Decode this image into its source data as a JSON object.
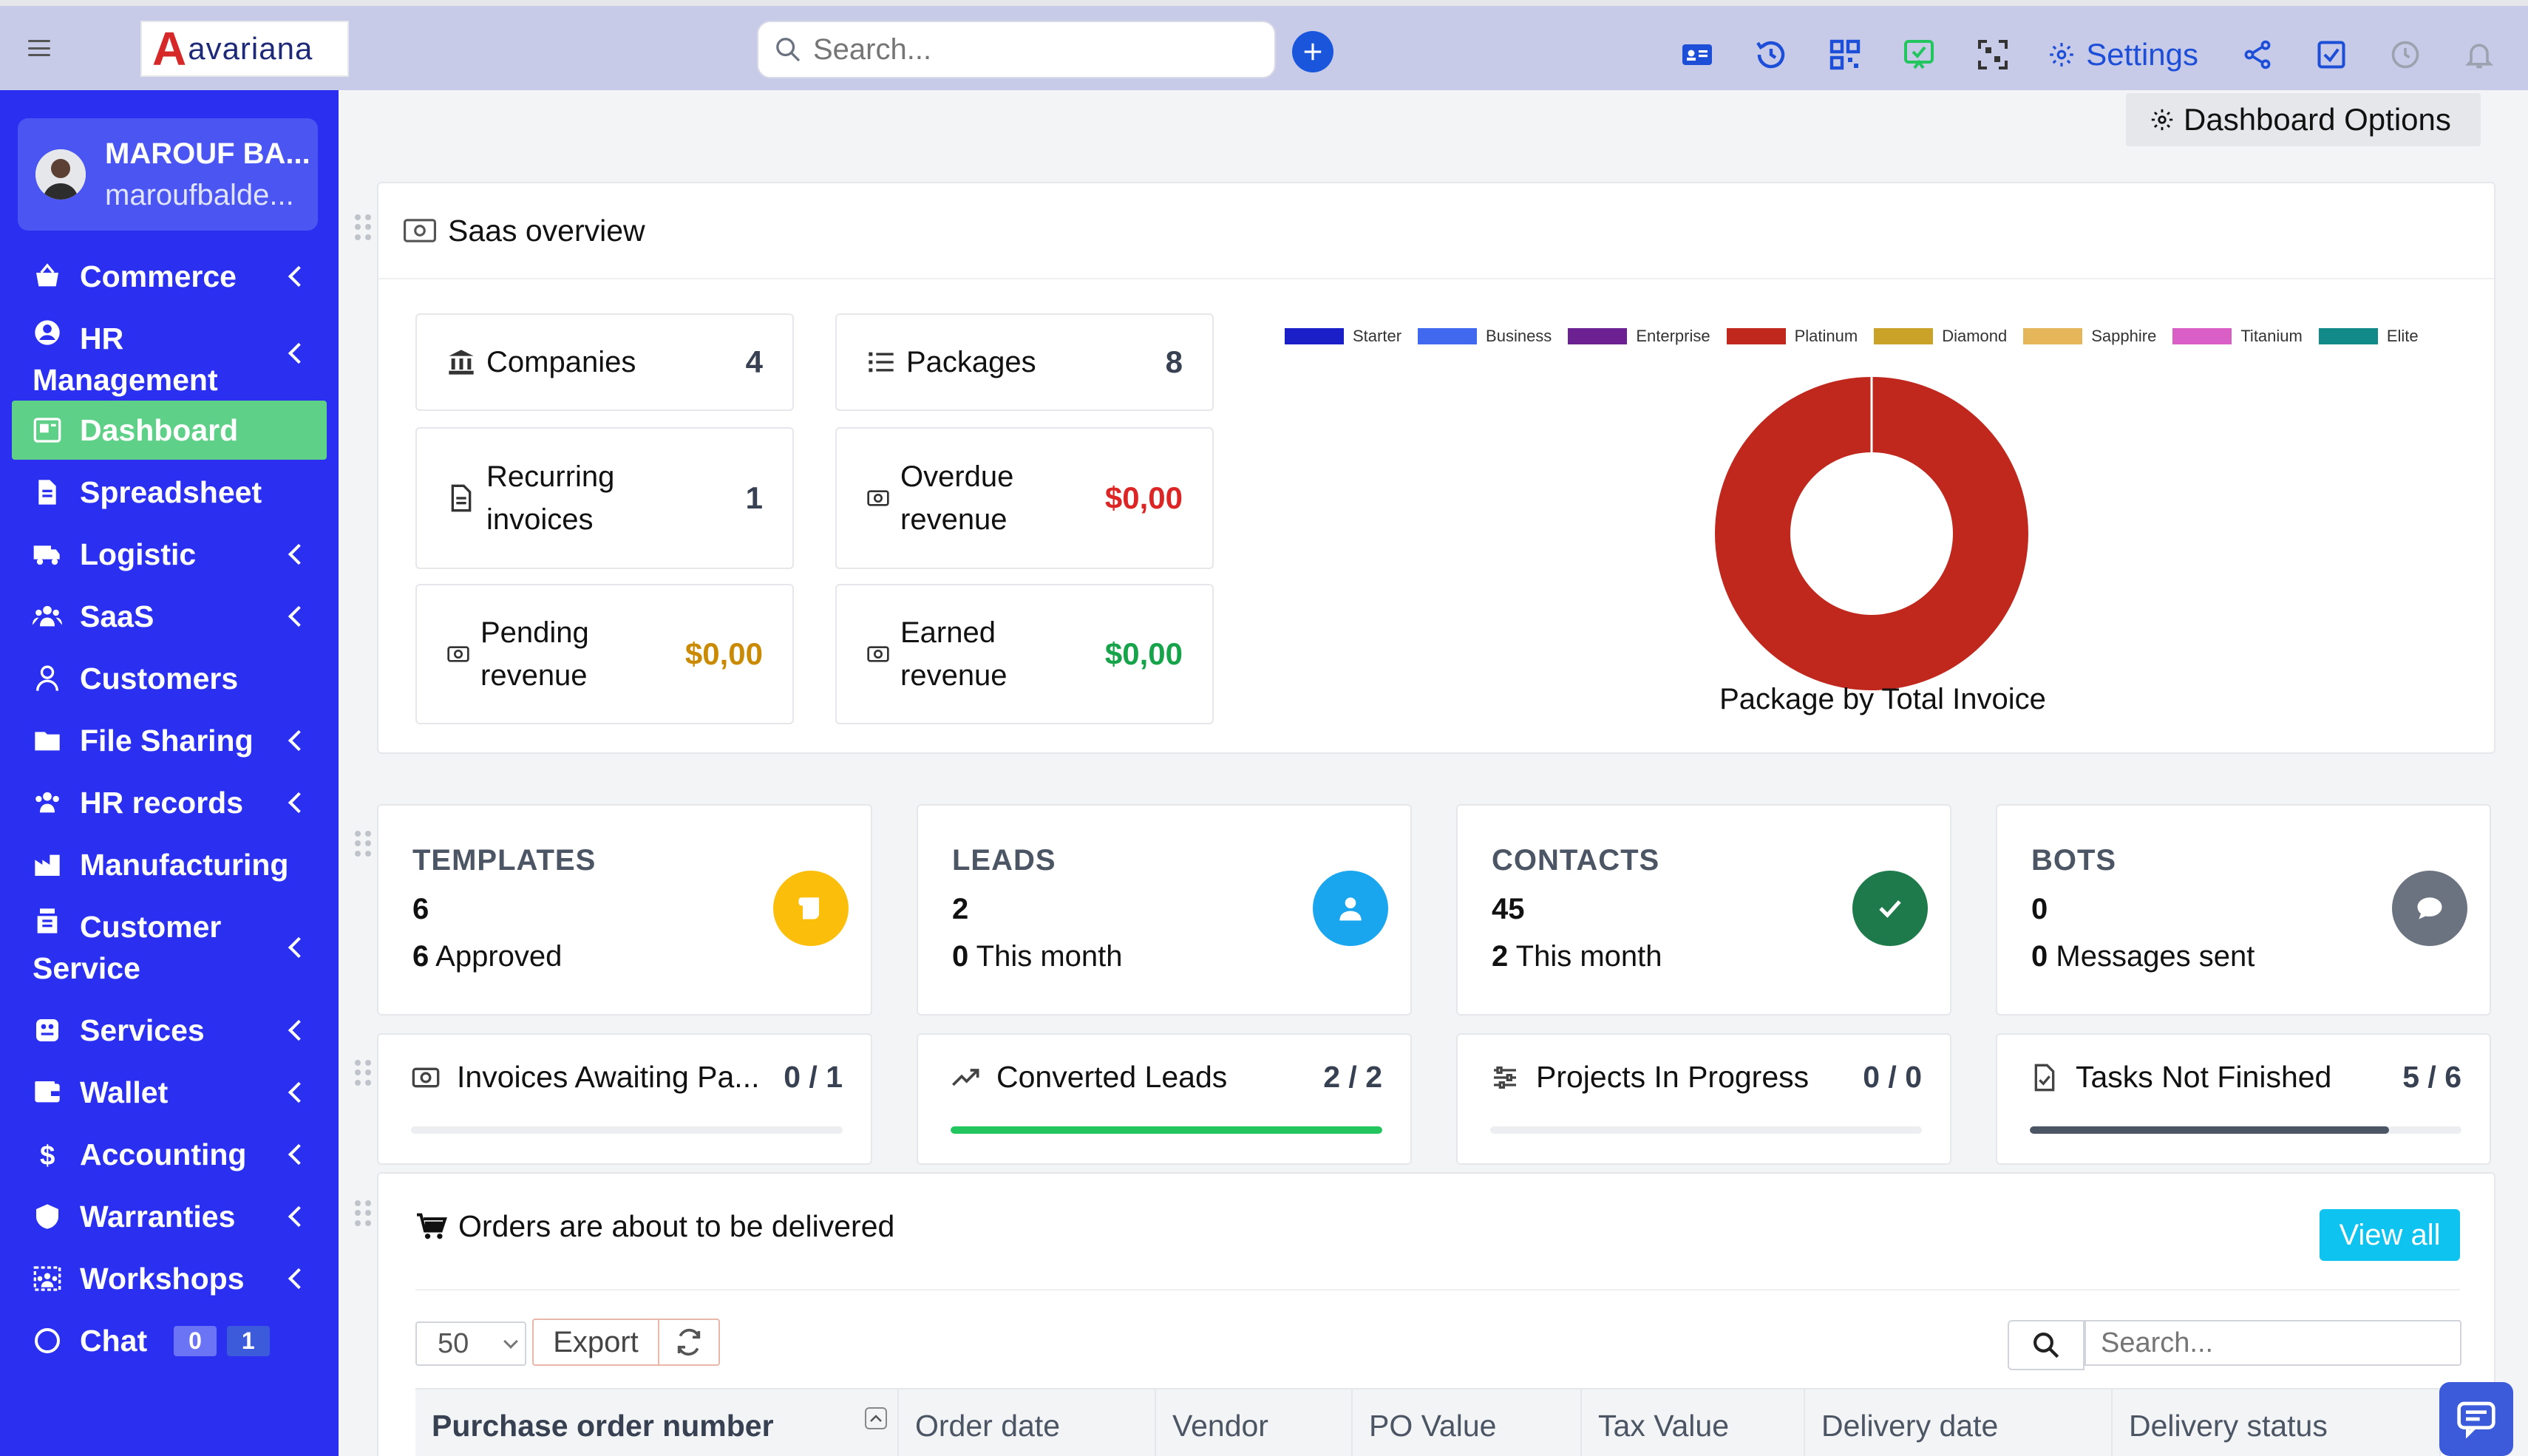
{
  "brand": {
    "logo_letter": "A",
    "logo_text": "avariana"
  },
  "topbar": {
    "search_placeholder": "Search...",
    "settings_label": "Settings",
    "icons": [
      "contact-card-icon",
      "history-icon",
      "qr-code-icon",
      "feedback-icon",
      "scan-qr-icon",
      "gear-icon",
      "share-icon",
      "checkbox-icon",
      "clock-icon",
      "bell-icon"
    ]
  },
  "user": {
    "name": "MAROUF BA...",
    "email": "maroufbalde..."
  },
  "sidebar": {
    "items": [
      {
        "label": "Commerce",
        "icon": "basket-icon",
        "has_children": true
      },
      {
        "label": "HR\nManagement",
        "icon": "user-circle-icon",
        "has_children": true
      },
      {
        "label": "Dashboard",
        "icon": "dashboard-icon",
        "has_children": false,
        "active": true
      },
      {
        "label": "Spreadsheet",
        "icon": "document-icon",
        "has_children": false
      },
      {
        "label": "Logistic",
        "icon": "truck-icon",
        "has_children": true
      },
      {
        "label": "SaaS",
        "icon": "users-icon",
        "has_children": true
      },
      {
        "label": "Customers",
        "icon": "person-icon",
        "has_children": false
      },
      {
        "label": "File Sharing",
        "icon": "folder-icon",
        "has_children": true
      },
      {
        "label": "HR records",
        "icon": "team-icon",
        "has_children": true
      },
      {
        "label": "Manufacturing",
        "icon": "factory-icon",
        "has_children": false
      },
      {
        "label": "Customer\nService",
        "icon": "support-icon",
        "has_children": true
      },
      {
        "label": "Services",
        "icon": "services-icon",
        "has_children": true
      },
      {
        "label": "Wallet",
        "icon": "wallet-icon",
        "has_children": true
      },
      {
        "label": "Accounting",
        "icon": "dollar-icon",
        "has_children": true
      },
      {
        "label": "Warranties",
        "icon": "shield-icon",
        "has_children": true
      },
      {
        "label": "Workshops",
        "icon": "workshop-icon",
        "has_children": true
      },
      {
        "label": "Chat",
        "icon": "chat-icon",
        "has_children": false,
        "badges": [
          "0",
          "1"
        ]
      }
    ]
  },
  "dashboard_options_label": "Dashboard Options",
  "saas": {
    "title": "Saas overview",
    "cards": [
      {
        "label": "Companies",
        "value": "4",
        "icon": "bank-icon",
        "color": "#374151"
      },
      {
        "label": "Packages",
        "value": "8",
        "icon": "list-icon",
        "color": "#374151"
      },
      {
        "label": "Recurring\ninvoices",
        "value": "1",
        "icon": "file-icon",
        "color": "#374151"
      },
      {
        "label": "Overdue\nrevenue",
        "value": "$0,00",
        "icon": "money-icon",
        "color": "#dc2626"
      },
      {
        "label": "Pending\nrevenue",
        "value": "$0,00",
        "icon": "money-icon",
        "color": "#ca8a04"
      },
      {
        "label": "Earned\nrevenue",
        "value": "$0,00",
        "icon": "money-icon",
        "color": "#16a34a"
      }
    ]
  },
  "chart_data": {
    "type": "pie",
    "title": "Package by Total Invoice",
    "categories": [
      "Starter",
      "Business",
      "Enterprise",
      "Platinum",
      "Diamond",
      "Sapphire",
      "Titanium",
      "Elite"
    ],
    "colors": [
      "#1a1fc7",
      "#4169f0",
      "#6b2191",
      "#c0281e",
      "#c9a227",
      "#e6b65a",
      "#d95fc7",
      "#128a8a"
    ],
    "values": [
      0,
      0,
      0,
      1,
      0,
      0,
      0,
      0
    ],
    "legend_position": "top",
    "donut": true
  },
  "kpis": [
    {
      "title": "TEMPLATES",
      "number": "6",
      "sub_num": "6",
      "sub_text": "Approved",
      "icon": "scroll-icon",
      "color": "#fbbf0b"
    },
    {
      "title": "LEADS",
      "number": "2",
      "sub_num": "0",
      "sub_text": "This month",
      "icon": "user-icon",
      "color": "#1aa6ee"
    },
    {
      "title": "CONTACTS",
      "number": "45",
      "sub_num": "2",
      "sub_text": "This month",
      "icon": "check-icon",
      "color": "#1e7a4a"
    },
    {
      "title": "BOTS",
      "number": "0",
      "sub_num": "0",
      "sub_text": "Messages sent",
      "icon": "message-icon",
      "color": "#6b7280"
    }
  ],
  "progress": [
    {
      "label": "Invoices Awaiting Pa...",
      "count": "0 / 1",
      "icon": "money-icon",
      "fraction": 0,
      "color": "#6b7280"
    },
    {
      "label": "Converted Leads",
      "count": "2 / 2",
      "icon": "trend-icon",
      "fraction": 1,
      "color": "#22c55e"
    },
    {
      "label": "Projects In Progress",
      "count": "0 / 0",
      "icon": "sliders-icon",
      "fraction": 0,
      "color": "#6b7280"
    },
    {
      "label": "Tasks Not Finished",
      "count": "5 / 6",
      "icon": "file-check-icon",
      "fraction": 0.833,
      "color": "#4b5563"
    }
  ],
  "orders": {
    "title": "Orders are about to be delivered",
    "view_all": "View all",
    "page_size": "50",
    "export_label": "Export",
    "search_placeholder": "Search...",
    "columns": [
      "Purchase order number",
      "Order date",
      "Vendor",
      "PO Value",
      "Tax Value",
      "Delivery date",
      "Delivery status"
    ]
  }
}
